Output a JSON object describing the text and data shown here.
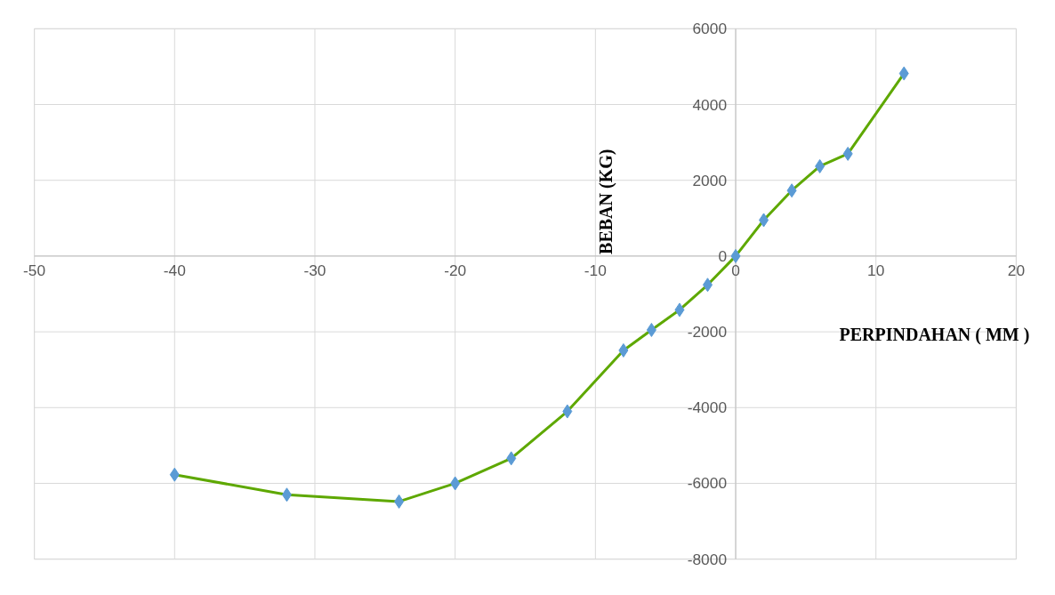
{
  "chart_data": {
    "type": "line",
    "xlabel": "PERPINDAHAN ( MM )",
    "ylabel": "BEBAN (KG)",
    "x": [
      -40,
      -32,
      -24,
      -20,
      -16,
      -12,
      -8,
      -6,
      -4,
      -2,
      0,
      2,
      4,
      6,
      8,
      12
    ],
    "series": [
      {
        "color": "#5ea800",
        "colors": [
          "#5b9bd5",
          "#5b9bd5",
          "#5b9bd5",
          "#5b9bd5",
          "#5b9bd5",
          "#5b9bd5",
          "#5b9bd5",
          "#5b9bd5",
          "#5b9bd5",
          "#5b9bd5",
          "#5b9bd5",
          "#5b9bd5",
          "#5b9bd5",
          "#5b9bd5",
          "#5b9bd5",
          "#5b9bd5"
        ],
        "values": [
          -5770,
          -6300,
          -6480,
          -6000,
          -5340,
          -4100,
          -2490,
          -1950,
          -1420,
          -760,
          0,
          950,
          1730,
          2370,
          2700,
          4820
        ]
      }
    ],
    "xlim": [
      -50,
      20
    ],
    "xticks": [
      -50,
      -40,
      -30,
      -20,
      -10,
      0,
      10,
      20
    ],
    "ylim": [
      -8000,
      6000
    ],
    "yticks": [
      -8000,
      -6000,
      -4000,
      -2000,
      0,
      2000,
      4000,
      6000
    ],
    "grid": true,
    "marker": "diamond",
    "line_style": "solid"
  }
}
